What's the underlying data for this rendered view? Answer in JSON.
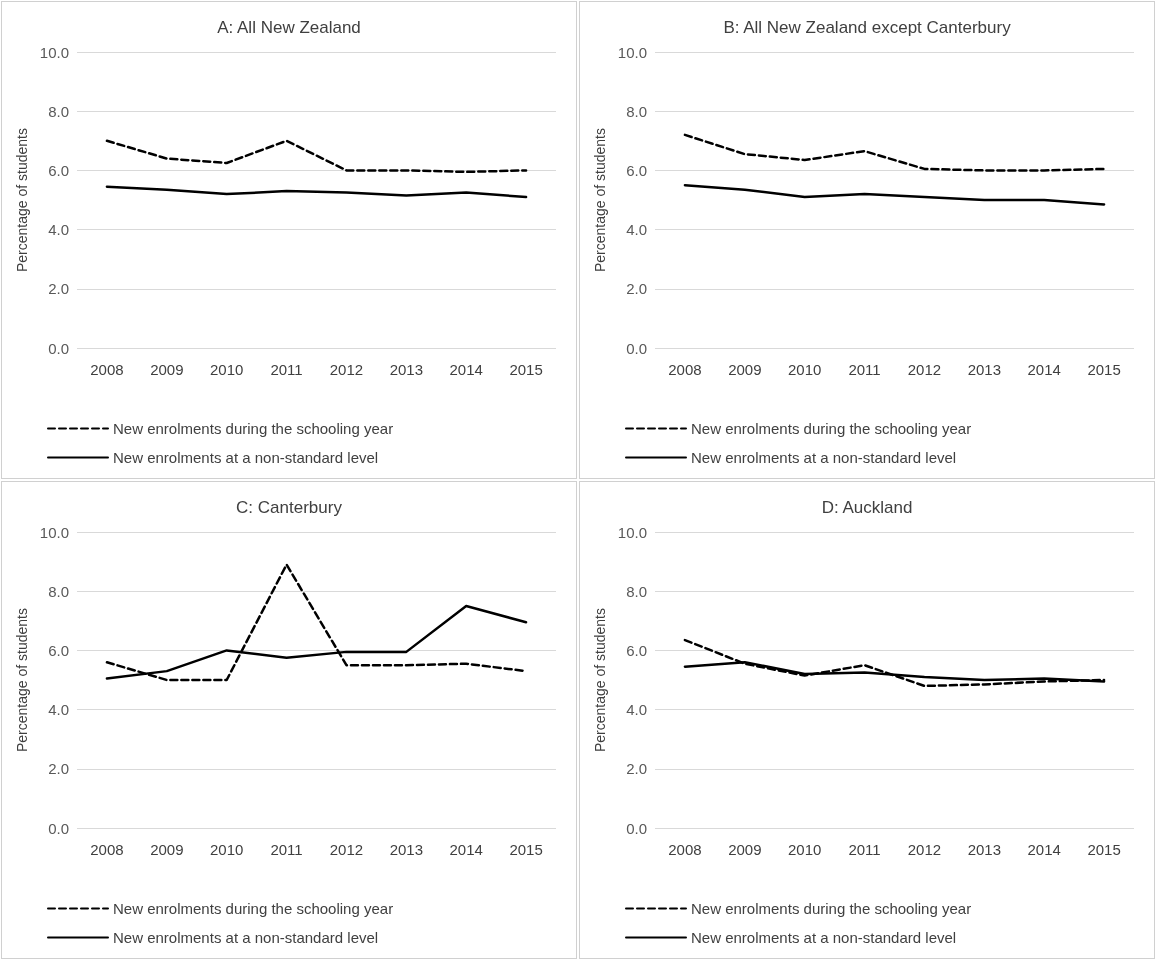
{
  "chart_data": [
    {
      "type": "line",
      "title": "A: All New Zealand",
      "ylabel": "Percentage of students",
      "categories": [
        "2008",
        "2009",
        "2010",
        "2011",
        "2012",
        "2013",
        "2014",
        "2015"
      ],
      "ylim": [
        0,
        10
      ],
      "yticks": [
        {
          "value": 0,
          "label": "0.0"
        },
        {
          "value": 2,
          "label": "2.0"
        },
        {
          "value": 4,
          "label": "4.0"
        },
        {
          "value": 6,
          "label": "6.0"
        },
        {
          "value": 8,
          "label": "8.0"
        },
        {
          "value": 10,
          "label": "10.0"
        }
      ],
      "grid": "y",
      "legend": "bottom",
      "marker": "none",
      "series": [
        {
          "name": "New enrolments during the schooling year",
          "color": "#000000",
          "line_style": "dashed",
          "values": [
            7.0,
            6.4,
            6.25,
            7.0,
            6.0,
            6.0,
            5.95,
            6.0
          ]
        },
        {
          "name": "New enrolments at a non-standard level",
          "color": "#000000",
          "line_style": "solid",
          "values": [
            5.45,
            5.35,
            5.2,
            5.3,
            5.25,
            5.15,
            5.25,
            5.1
          ]
        }
      ]
    },
    {
      "type": "line",
      "title": "B: All New Zealand except Canterbury",
      "ylabel": "Percentage of students",
      "categories": [
        "2008",
        "2009",
        "2010",
        "2011",
        "2012",
        "2013",
        "2014",
        "2015"
      ],
      "ylim": [
        0,
        10
      ],
      "yticks": [
        {
          "value": 0,
          "label": "0.0"
        },
        {
          "value": 2,
          "label": "2.0"
        },
        {
          "value": 4,
          "label": "4.0"
        },
        {
          "value": 6,
          "label": "6.0"
        },
        {
          "value": 8,
          "label": "8.0"
        },
        {
          "value": 10,
          "label": "10.0"
        }
      ],
      "grid": "y",
      "legend": "bottom",
      "marker": "none",
      "series": [
        {
          "name": "New enrolments during the schooling year",
          "color": "#000000",
          "line_style": "dashed",
          "values": [
            7.2,
            6.55,
            6.35,
            6.65,
            6.05,
            6.0,
            6.0,
            6.05
          ]
        },
        {
          "name": "New enrolments at a non-standard level",
          "color": "#000000",
          "line_style": "solid",
          "values": [
            5.5,
            5.35,
            5.1,
            5.2,
            5.1,
            5.0,
            5.0,
            4.85
          ]
        }
      ]
    },
    {
      "type": "line",
      "title": "C: Canterbury",
      "ylabel": "Percentage of students",
      "categories": [
        "2008",
        "2009",
        "2010",
        "2011",
        "2012",
        "2013",
        "2014",
        "2015"
      ],
      "ylim": [
        0,
        10
      ],
      "yticks": [
        {
          "value": 0,
          "label": "0.0"
        },
        {
          "value": 2,
          "label": "2.0"
        },
        {
          "value": 4,
          "label": "4.0"
        },
        {
          "value": 6,
          "label": "6.0"
        },
        {
          "value": 8,
          "label": "8.0"
        },
        {
          "value": 10,
          "label": "10.0"
        }
      ],
      "grid": "y",
      "legend": "bottom",
      "marker": "none",
      "series": [
        {
          "name": "New enrolments during the schooling year",
          "color": "#000000",
          "line_style": "dashed",
          "values": [
            5.6,
            5.0,
            5.0,
            8.9,
            5.5,
            5.5,
            5.55,
            5.3
          ]
        },
        {
          "name": "New enrolments at a non-standard level",
          "color": "#000000",
          "line_style": "solid",
          "values": [
            5.05,
            5.3,
            6.0,
            5.75,
            5.95,
            5.95,
            7.5,
            6.95
          ]
        }
      ]
    },
    {
      "type": "line",
      "title": "D: Auckland",
      "ylabel": "Percentage of students",
      "categories": [
        "2008",
        "2009",
        "2010",
        "2011",
        "2012",
        "2013",
        "2014",
        "2015"
      ],
      "ylim": [
        0,
        10
      ],
      "yticks": [
        {
          "value": 0,
          "label": "0.0"
        },
        {
          "value": 2,
          "label": "2.0"
        },
        {
          "value": 4,
          "label": "4.0"
        },
        {
          "value": 6,
          "label": "6.0"
        },
        {
          "value": 8,
          "label": "8.0"
        },
        {
          "value": 10,
          "label": "10.0"
        }
      ],
      "grid": "y",
      "legend": "bottom",
      "marker": "none",
      "series": [
        {
          "name": "New enrolments during the schooling year",
          "color": "#000000",
          "line_style": "dashed",
          "values": [
            6.35,
            5.55,
            5.15,
            5.5,
            4.8,
            4.85,
            4.95,
            5.0
          ]
        },
        {
          "name": "New enrolments at a non-standard level",
          "color": "#000000",
          "line_style": "solid",
          "values": [
            5.45,
            5.6,
            5.2,
            5.25,
            5.1,
            5.0,
            5.05,
            4.95
          ]
        }
      ]
    }
  ]
}
